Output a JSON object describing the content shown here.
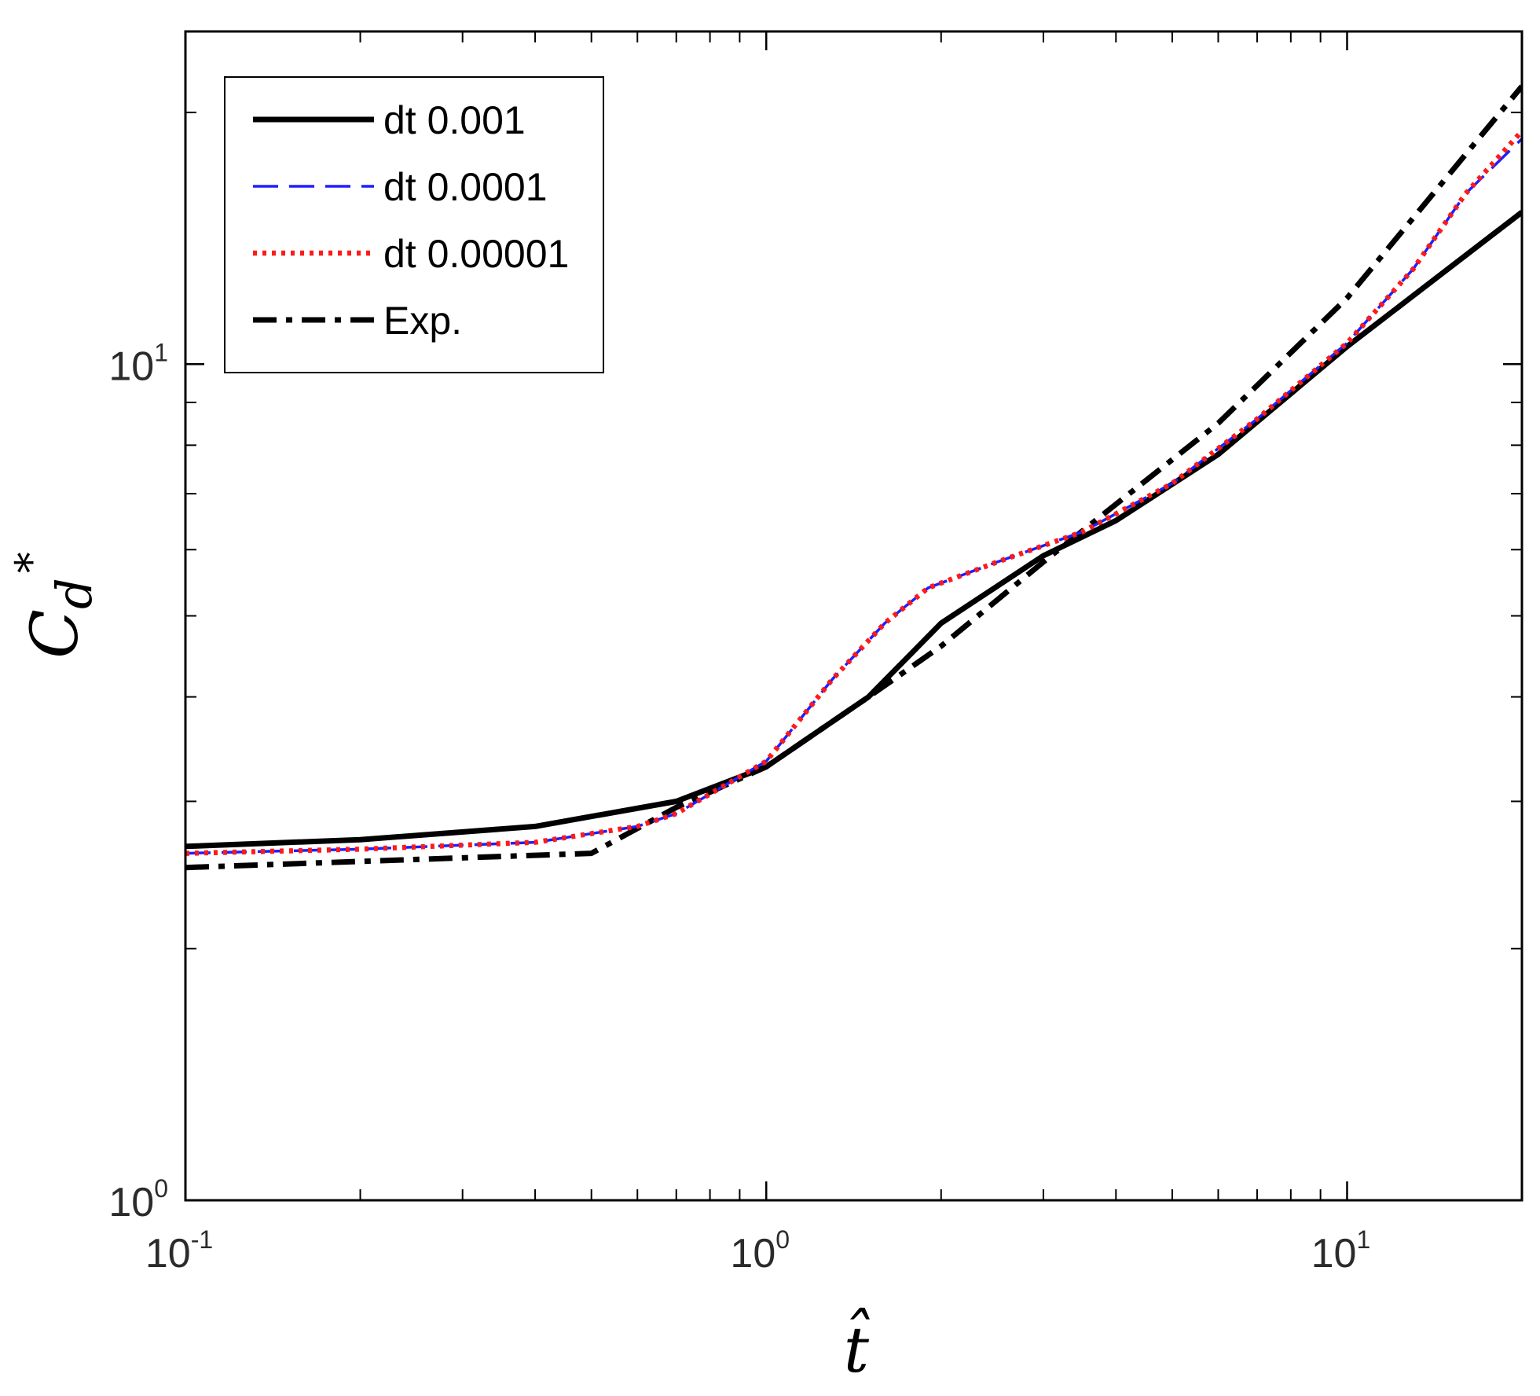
{
  "chart_data": {
    "type": "line",
    "title": "",
    "xlabel": "t̂",
    "ylabel_base": "C",
    "ylabel_sub": "d",
    "ylabel_sup": "*",
    "x_scale": "log",
    "y_scale": "log",
    "xlim": [
      0.1,
      20
    ],
    "ylim": [
      1,
      25
    ],
    "x_ticks": [
      {
        "value": 0.1,
        "base": "10",
        "exp": "-1"
      },
      {
        "value": 1,
        "base": "10",
        "exp": "0"
      },
      {
        "value": 10,
        "base": "10",
        "exp": "1"
      }
    ],
    "y_ticks": [
      {
        "value": 1,
        "base": "10",
        "exp": "0"
      },
      {
        "value": 10,
        "base": "10",
        "exp": "1"
      }
    ],
    "grid": false,
    "legend_position": "top-left",
    "series": [
      {
        "name": "dt 0.001",
        "color": "#000000",
        "style": "solid",
        "x": [
          0.1,
          0.2,
          0.4,
          0.7,
          1.0,
          1.5,
          2.0,
          3.0,
          4.0,
          6.0,
          10.0,
          20.0
        ],
        "y": [
          2.65,
          2.7,
          2.8,
          3.0,
          3.3,
          4.0,
          4.9,
          5.9,
          6.5,
          7.8,
          10.5,
          15.2
        ]
      },
      {
        "name": "dt 0.0001",
        "color": "#1f1fff",
        "style": "dashed",
        "x": [
          0.1,
          0.2,
          0.4,
          0.6,
          0.7,
          1.0,
          1.3,
          1.6,
          1.9,
          2.5,
          3.5,
          5.0,
          7.0,
          10.0,
          13.0,
          16.0,
          20.0
        ],
        "y": [
          2.6,
          2.63,
          2.68,
          2.8,
          2.9,
          3.35,
          4.2,
          4.9,
          5.4,
          5.8,
          6.3,
          7.2,
          8.6,
          10.6,
          13.0,
          16.0,
          18.6
        ]
      },
      {
        "name": "dt 0.00001",
        "color": "#ff1a1a",
        "style": "dotted",
        "x": [
          0.1,
          0.2,
          0.4,
          0.6,
          0.7,
          1.0,
          1.3,
          1.6,
          1.9,
          2.5,
          3.5,
          5.0,
          7.0,
          10.0,
          13.0,
          16.0,
          20.0
        ],
        "y": [
          2.6,
          2.63,
          2.68,
          2.8,
          2.9,
          3.35,
          4.2,
          4.9,
          5.4,
          5.8,
          6.3,
          7.2,
          8.6,
          10.6,
          13.0,
          16.0,
          19.0
        ]
      },
      {
        "name": "Exp.",
        "color": "#000000",
        "style": "dashdot",
        "x": [
          0.1,
          0.5,
          0.7,
          1.0,
          1.5,
          2.0,
          3.0,
          4.0,
          6.0,
          10.0,
          20.0
        ],
        "y": [
          2.5,
          2.6,
          2.95,
          3.3,
          4.0,
          4.6,
          5.8,
          6.8,
          8.5,
          12.0,
          21.5
        ]
      }
    ]
  }
}
